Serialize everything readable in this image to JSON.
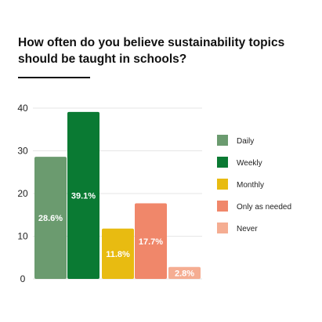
{
  "chart_data": {
    "type": "bar",
    "title": "How often do you believe sustainability topics should be taught in schools?",
    "categories": [
      "Daily",
      "Weekly",
      "Monthly",
      "Only as needed",
      "Never"
    ],
    "values": [
      28.6,
      39.1,
      11.8,
      17.7,
      2.8
    ],
    "data_labels": [
      "28.6%",
      "39.1%",
      "11.8%",
      "17.7%",
      "2.8%"
    ],
    "colors": [
      "#6b9b6f",
      "#0a7a33",
      "#e8bb11",
      "#f0876a",
      "#f5ad92"
    ],
    "ylim": [
      0,
      40
    ],
    "yticks": [
      "0",
      "10",
      "20",
      "30",
      "40"
    ],
    "xlabel": "",
    "ylabel": "",
    "grid": true,
    "legend_position": "right"
  }
}
